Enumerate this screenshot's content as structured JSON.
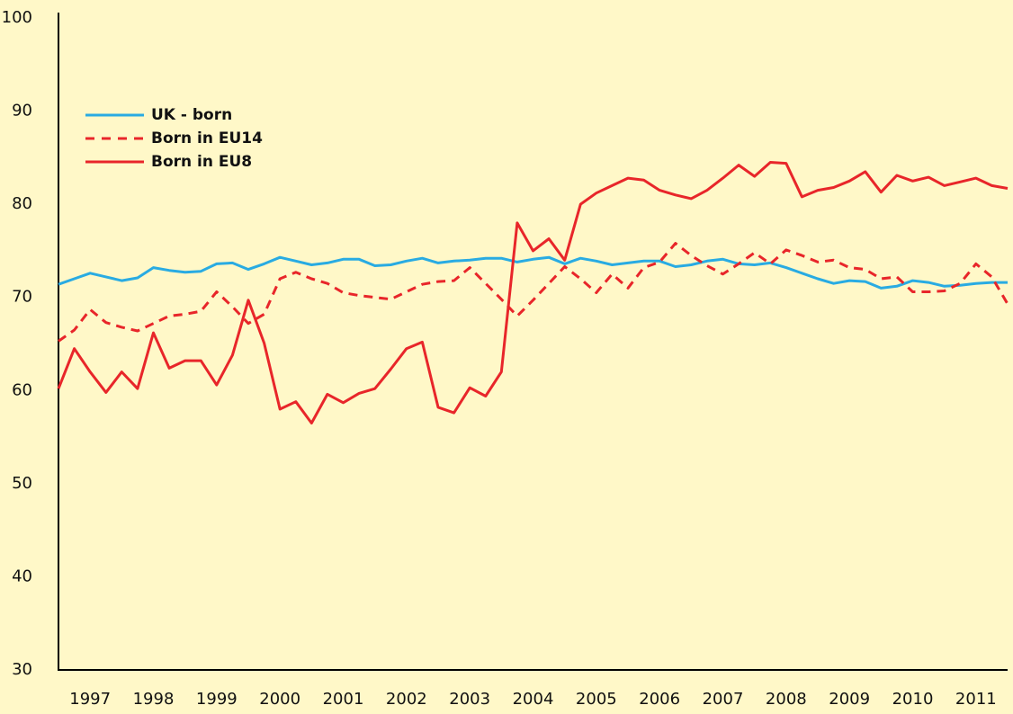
{
  "chart_data": {
    "type": "line",
    "x": [
      1997,
      1997.25,
      1997.5,
      1997.75,
      1998,
      1998.25,
      1998.5,
      1998.75,
      1999,
      1999.25,
      1999.5,
      1999.75,
      2000,
      2000.25,
      2000.5,
      2000.75,
      2001,
      2001.25,
      2001.5,
      2001.75,
      2002,
      2002.25,
      2002.5,
      2002.75,
      2003,
      2003.25,
      2003.5,
      2003.75,
      2004,
      2004.25,
      2004.5,
      2004.75,
      2005,
      2005.25,
      2005.5,
      2005.75,
      2006,
      2006.25,
      2006.5,
      2006.75,
      2007,
      2007.25,
      2007.5,
      2007.75,
      2008,
      2008.25,
      2008.5,
      2008.75,
      2009,
      2009.25,
      2009.5,
      2009.75,
      2010,
      2010.25,
      2010.5,
      2010.75,
      2011,
      2011.25,
      2011.5,
      2011.75,
      2012
    ],
    "series": [
      {
        "name": "UK - born",
        "color": "#29abe2",
        "style": "solid",
        "values": [
          71.4,
          72.0,
          72.6,
          72.2,
          71.8,
          72.1,
          73.2,
          72.9,
          72.7,
          72.8,
          73.6,
          73.7,
          73.0,
          73.6,
          74.3,
          73.9,
          73.5,
          73.7,
          74.1,
          74.1,
          73.4,
          73.5,
          73.9,
          74.2,
          73.7,
          73.9,
          74.0,
          74.2,
          74.2,
          73.8,
          74.1,
          74.3,
          73.6,
          74.2,
          73.9,
          73.5,
          73.7,
          73.9,
          73.9,
          73.3,
          73.5,
          73.9,
          74.1,
          73.6,
          73.5,
          73.7,
          73.2,
          72.6,
          72.0,
          71.5,
          71.8,
          71.7,
          71.0,
          71.2,
          71.8,
          71.6,
          71.2,
          71.3,
          71.5,
          71.6,
          71.6
        ]
      },
      {
        "name": "Born in EU14",
        "color": "#e8262a",
        "style": "dashed",
        "values": [
          65.3,
          66.5,
          68.7,
          67.3,
          66.8,
          66.4,
          67.2,
          68.0,
          68.2,
          68.5,
          70.6,
          69.0,
          67.2,
          68.2,
          72.0,
          72.7,
          72.0,
          71.5,
          70.5,
          70.2,
          70.0,
          69.8,
          70.6,
          71.4,
          71.7,
          71.8,
          73.2,
          71.5,
          69.8,
          68.0,
          69.7,
          71.5,
          73.3,
          72.0,
          70.5,
          72.5,
          71.0,
          73.2,
          73.8,
          75.8,
          74.5,
          73.4,
          72.5,
          73.6,
          74.8,
          73.6,
          75.1,
          74.5,
          73.8,
          74.0,
          73.2,
          73.0,
          72.0,
          72.2,
          70.6,
          70.6,
          70.7,
          71.5,
          73.6,
          72.2,
          69.3
        ]
      },
      {
        "name": "Born in EU8",
        "color": "#e8262a",
        "style": "solid",
        "values": [
          60.2,
          64.5,
          62.0,
          59.8,
          62.0,
          60.2,
          66.2,
          62.4,
          63.2,
          63.2,
          60.6,
          63.8,
          69.7,
          65.1,
          58.0,
          58.8,
          56.5,
          59.6,
          58.7,
          59.7,
          60.2,
          62.3,
          64.5,
          65.2,
          58.2,
          57.6,
          60.3,
          59.4,
          62.0,
          78.0,
          75.0,
          76.3,
          74.0,
          80.0,
          81.2,
          82.0,
          82.8,
          82.6,
          81.5,
          81.0,
          80.6,
          81.5,
          82.8,
          84.2,
          83.0,
          84.5,
          84.4,
          80.8,
          81.5,
          81.8,
          82.5,
          83.5,
          81.3,
          83.1,
          82.5,
          82.9,
          82.0,
          82.4,
          82.8,
          82.0,
          81.7
        ]
      }
    ],
    "xlim": [
      1997,
      2012
    ],
    "xticks": [
      {
        "value": 1997.5,
        "label": "1997"
      },
      {
        "value": 1998.5,
        "label": "1998"
      },
      {
        "value": 1999.5,
        "label": "1999"
      },
      {
        "value": 2000.5,
        "label": "2000"
      },
      {
        "value": 2001.5,
        "label": "2001"
      },
      {
        "value": 2002.5,
        "label": "2002"
      },
      {
        "value": 2003.5,
        "label": "2003"
      },
      {
        "value": 2004.5,
        "label": "2004"
      },
      {
        "value": 2005.5,
        "label": "2005"
      },
      {
        "value": 2006.5,
        "label": "2006"
      },
      {
        "value": 2007.5,
        "label": "2007"
      },
      {
        "value": 2008.5,
        "label": "2008"
      },
      {
        "value": 2009.5,
        "label": "2009"
      },
      {
        "value": 2010.5,
        "label": "2010"
      },
      {
        "value": 2011.5,
        "label": "2011"
      }
    ],
    "ylim": [
      30,
      100
    ],
    "yticks": [
      30,
      40,
      50,
      60,
      70,
      80,
      90,
      100
    ],
    "grid": false,
    "legend": "upper-left"
  }
}
